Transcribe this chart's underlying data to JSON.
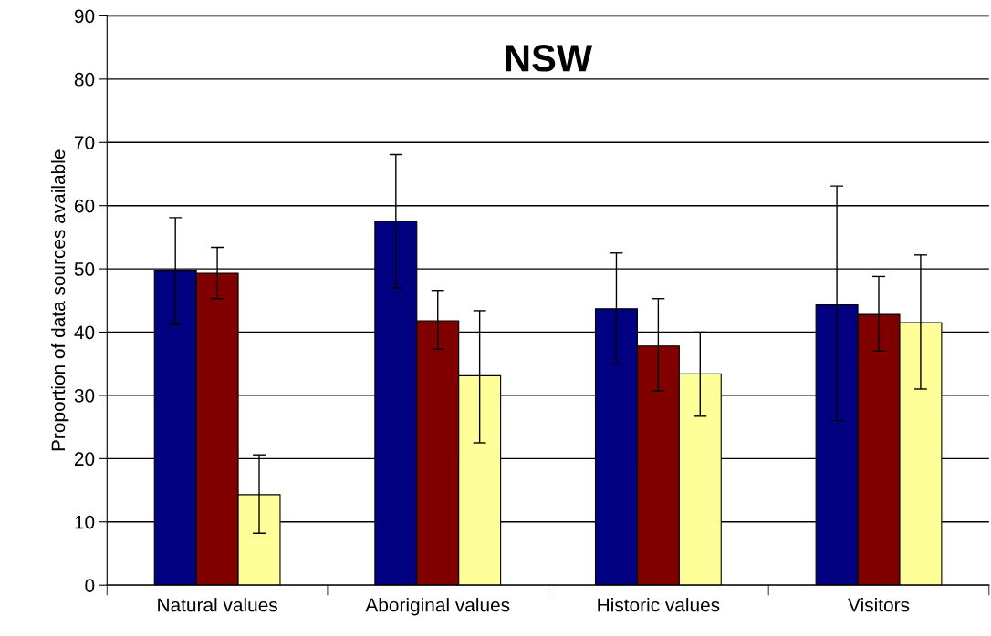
{
  "chart_data": {
    "type": "bar",
    "title": "NSW",
    "ylabel": "Proportion of data sources available",
    "categories": [
      "Natural values",
      "Aboriginal values",
      "Historic values",
      "Visitors"
    ],
    "series": [
      {
        "color": "#000080",
        "values": [
          49.8,
          57.5,
          43.7,
          44.3
        ],
        "errors": [
          [
            41.2,
            58.1
          ],
          [
            47.0,
            68.1
          ],
          [
            35.0,
            52.5
          ],
          [
            26.0,
            63.1
          ]
        ]
      },
      {
        "color": "#800000",
        "values": [
          49.3,
          41.8,
          37.8,
          42.8
        ],
        "errors": [
          [
            45.3,
            53.4
          ],
          [
            37.3,
            46.6
          ],
          [
            30.7,
            45.3
          ],
          [
            37.0,
            48.8
          ]
        ]
      },
      {
        "color": "#ffff99",
        "values": [
          14.3,
          33.1,
          33.4,
          41.5
        ],
        "errors": [
          [
            8.2,
            20.6
          ],
          [
            22.5,
            43.4
          ],
          [
            26.7,
            40.0
          ],
          [
            31.0,
            52.2
          ]
        ]
      }
    ],
    "ylim": [
      0,
      90
    ],
    "yticks": [
      0,
      10,
      20,
      30,
      40,
      50,
      60,
      70,
      80,
      90
    ],
    "grid": "y",
    "legend": false
  }
}
